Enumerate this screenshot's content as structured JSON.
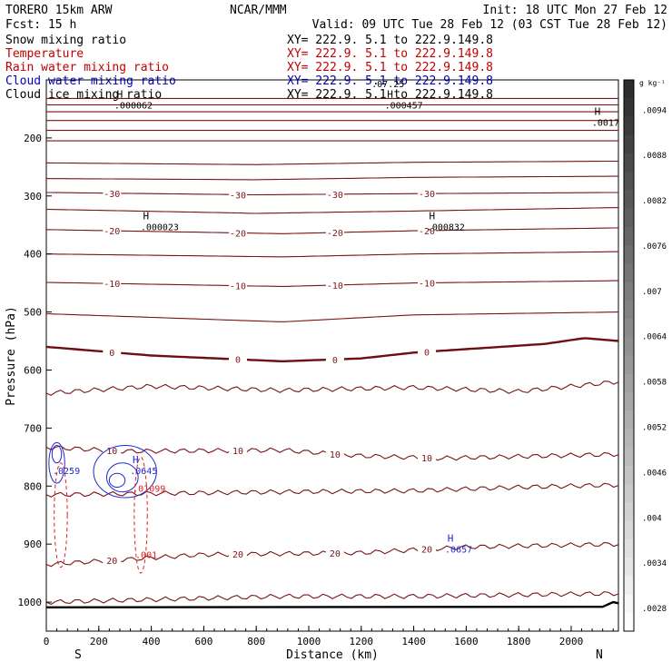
{
  "header": {
    "model": "TORERO  15km ARW",
    "center": "NCAR/MMM",
    "init": "Init: 18 UTC Mon 27 Feb 12",
    "fcst": "Fcst:   15 h",
    "valid": "Valid: 09 UTC Tue 28 Feb 12 (03 CST Tue 28 Feb 12)"
  },
  "legend": [
    {
      "label": "Snow mixing ratio",
      "color": "#000000"
    },
    {
      "label": "Temperature",
      "color": "#c00000"
    },
    {
      "label": "Rain water mixing ratio",
      "color": "#c00000"
    },
    {
      "label": "Cloud water mixing ratio",
      "color": "#0000c0"
    },
    {
      "label": "Cloud ice mixing ratio",
      "color": "#000000"
    }
  ],
  "xsection_label": "XY= 222.9.  5.1 to 222.9.149.8",
  "colors": {
    "temperature": "#7a1416",
    "freezing": "#6e0e12",
    "rain": "#e02020",
    "cloud_water": "#1f2ad0",
    "ground": "#000000"
  },
  "chart_data": {
    "type": "cross-section",
    "xlabel": "Distance (km)",
    "ylabel": "Pressure (hPa)",
    "xlim": [
      0,
      2180
    ],
    "ylim": [
      1050,
      100
    ],
    "x_ticks": [
      "0",
      "200",
      "400",
      "600",
      "800",
      "1000",
      "1200",
      "1400",
      "1600",
      "1800",
      "2000"
    ],
    "x_tick_values": [
      0,
      200,
      400,
      600,
      800,
      1000,
      1200,
      1400,
      1600,
      1800,
      2000
    ],
    "y_ticks": [
      "200",
      "300",
      "400",
      "500",
      "600",
      "700",
      "800",
      "900",
      "1000"
    ],
    "y_tick_values": [
      200,
      300,
      400,
      500,
      600,
      700,
      800,
      900,
      1000
    ],
    "left_end": "S",
    "right_end": "N",
    "temperature_contours": [
      {
        "value": -70,
        "label": "",
        "profile": [
          [
            0,
            132
          ],
          [
            2180,
            132
          ]
        ]
      },
      {
        "value": -65,
        "label": "",
        "profile": [
          [
            0,
            143
          ],
          [
            2180,
            143
          ]
        ]
      },
      {
        "value": -60,
        "label": "",
        "profile": [
          [
            0,
            155
          ],
          [
            2180,
            155
          ]
        ]
      },
      {
        "value": -55,
        "label": "",
        "profile": [
          [
            0,
            170
          ],
          [
            2180,
            170
          ]
        ]
      },
      {
        "value": -50,
        "label": "",
        "profile": [
          [
            0,
            187
          ],
          [
            2180,
            187
          ]
        ]
      },
      {
        "value": -45,
        "label": "",
        "profile": [
          [
            0,
            205
          ],
          [
            2180,
            205
          ]
        ]
      },
      {
        "value": -40,
        "label": "",
        "profile": [
          [
            0,
            243
          ],
          [
            800,
            246
          ],
          [
            1400,
            242
          ],
          [
            2180,
            240
          ]
        ]
      },
      {
        "value": -35,
        "label": "",
        "profile": [
          [
            0,
            270
          ],
          [
            800,
            272
          ],
          [
            1400,
            268
          ],
          [
            2180,
            266
          ]
        ]
      },
      {
        "value": -30,
        "label": "-30",
        "profile": [
          [
            0,
            294
          ],
          [
            800,
            298
          ],
          [
            1400,
            296
          ],
          [
            2180,
            294
          ]
        ]
      },
      {
        "value": -25,
        "label": "",
        "profile": [
          [
            0,
            323
          ],
          [
            800,
            330
          ],
          [
            1400,
            326
          ],
          [
            2180,
            320
          ]
        ]
      },
      {
        "value": -20,
        "label": "-20",
        "profile": [
          [
            0,
            358
          ],
          [
            900,
            365
          ],
          [
            1400,
            360
          ],
          [
            2180,
            355
          ]
        ]
      },
      {
        "value": -15,
        "label": "",
        "profile": [
          [
            0,
            400
          ],
          [
            900,
            405
          ],
          [
            1400,
            400
          ],
          [
            2180,
            396
          ]
        ]
      },
      {
        "value": -10,
        "label": "-10",
        "profile": [
          [
            0,
            449
          ],
          [
            900,
            456
          ],
          [
            1400,
            450
          ],
          [
            2180,
            446
          ]
        ]
      },
      {
        "value": -5,
        "label": "",
        "profile": [
          [
            0,
            503
          ],
          [
            900,
            517
          ],
          [
            1400,
            505
          ],
          [
            2180,
            500
          ]
        ]
      },
      {
        "value": 0,
        "label": "0",
        "profile": [
          [
            0,
            560
          ],
          [
            400,
            575
          ],
          [
            900,
            585
          ],
          [
            1200,
            580
          ],
          [
            1400,
            570
          ],
          [
            1900,
            555
          ],
          [
            2050,
            545
          ],
          [
            2180,
            550
          ]
        ]
      },
      {
        "value": 5,
        "label": "",
        "profile": [
          [
            0,
            640
          ],
          [
            400,
            628
          ],
          [
            900,
            635
          ],
          [
            1400,
            630
          ],
          [
            1800,
            637
          ],
          [
            2180,
            620
          ]
        ]
      },
      {
        "value": 10,
        "label": "10",
        "profile": [
          [
            0,
            733
          ],
          [
            300,
            740
          ],
          [
            900,
            738
          ],
          [
            1200,
            748
          ],
          [
            1500,
            752
          ],
          [
            1900,
            748
          ],
          [
            2180,
            745
          ]
        ]
      },
      {
        "value": 15,
        "label": "",
        "profile": [
          [
            0,
            815
          ],
          [
            900,
            810
          ],
          [
            1400,
            808
          ],
          [
            1800,
            802
          ],
          [
            2180,
            798
          ]
        ]
      },
      {
        "value": 20,
        "label": "20",
        "profile": [
          [
            0,
            935
          ],
          [
            600,
            918
          ],
          [
            1200,
            915
          ],
          [
            1600,
            905
          ],
          [
            2180,
            900
          ]
        ]
      },
      {
        "value": 25,
        "label": "",
        "profile": [
          [
            0,
            1000
          ],
          [
            900,
            990
          ],
          [
            1400,
            990
          ],
          [
            2180,
            985
          ]
        ]
      }
    ],
    "labels": [
      {
        "text": "H",
        "sub": ".000062",
        "x": 280,
        "p": 140,
        "color": "#000000"
      },
      {
        "text": "H",
        "sub": ".000457",
        "x": 1310,
        "p": 140,
        "color": "#000000"
      },
      {
        "text": "H",
        "sub": ".0017",
        "x": 2100,
        "p": 170,
        "color": "#000000"
      },
      {
        "text": "H",
        "sub": ".000023",
        "x": 380,
        "p": 350,
        "color": "#000000"
      },
      {
        "text": "H",
        "sub": ".000832",
        "x": 1470,
        "p": 350,
        "color": "#000000"
      },
      {
        "text": "H",
        "sub": ".0645",
        "x": 340,
        "p": 770,
        "color": "#1f2ad0"
      },
      {
        "text": "",
        "sub": ".01099",
        "x": 350,
        "p": 800,
        "color": "#e02020"
      },
      {
        "text": "",
        "sub": ".001",
        "x": 360,
        "p": 915,
        "color": "#e02020"
      },
      {
        "text": "H",
        "sub": ".0657",
        "x": 1540,
        "p": 905,
        "color": "#1f2ad0"
      },
      {
        "text": "",
        "sub": ".0259",
        "x": 45,
        "p": 770,
        "color": "#1f2ad0"
      },
      {
        "text": "",
        "sub": ".07.25",
        "x": 1260,
        "p": 103,
        "color": "#000000"
      }
    ],
    "colorbar": {
      "unit": "g kg⁻¹",
      "ticks": [
        ".0094",
        ".0088",
        ".0082",
        ".0076",
        ".007",
        ".0064",
        ".0058",
        ".0052",
        ".0046",
        ".004",
        ".0034",
        ".0028"
      ],
      "tick_values": [
        0.0094,
        0.0088,
        0.0082,
        0.0076,
        0.007,
        0.0064,
        0.0058,
        0.0052,
        0.0046,
        0.004,
        0.0034,
        0.0028
      ]
    }
  }
}
